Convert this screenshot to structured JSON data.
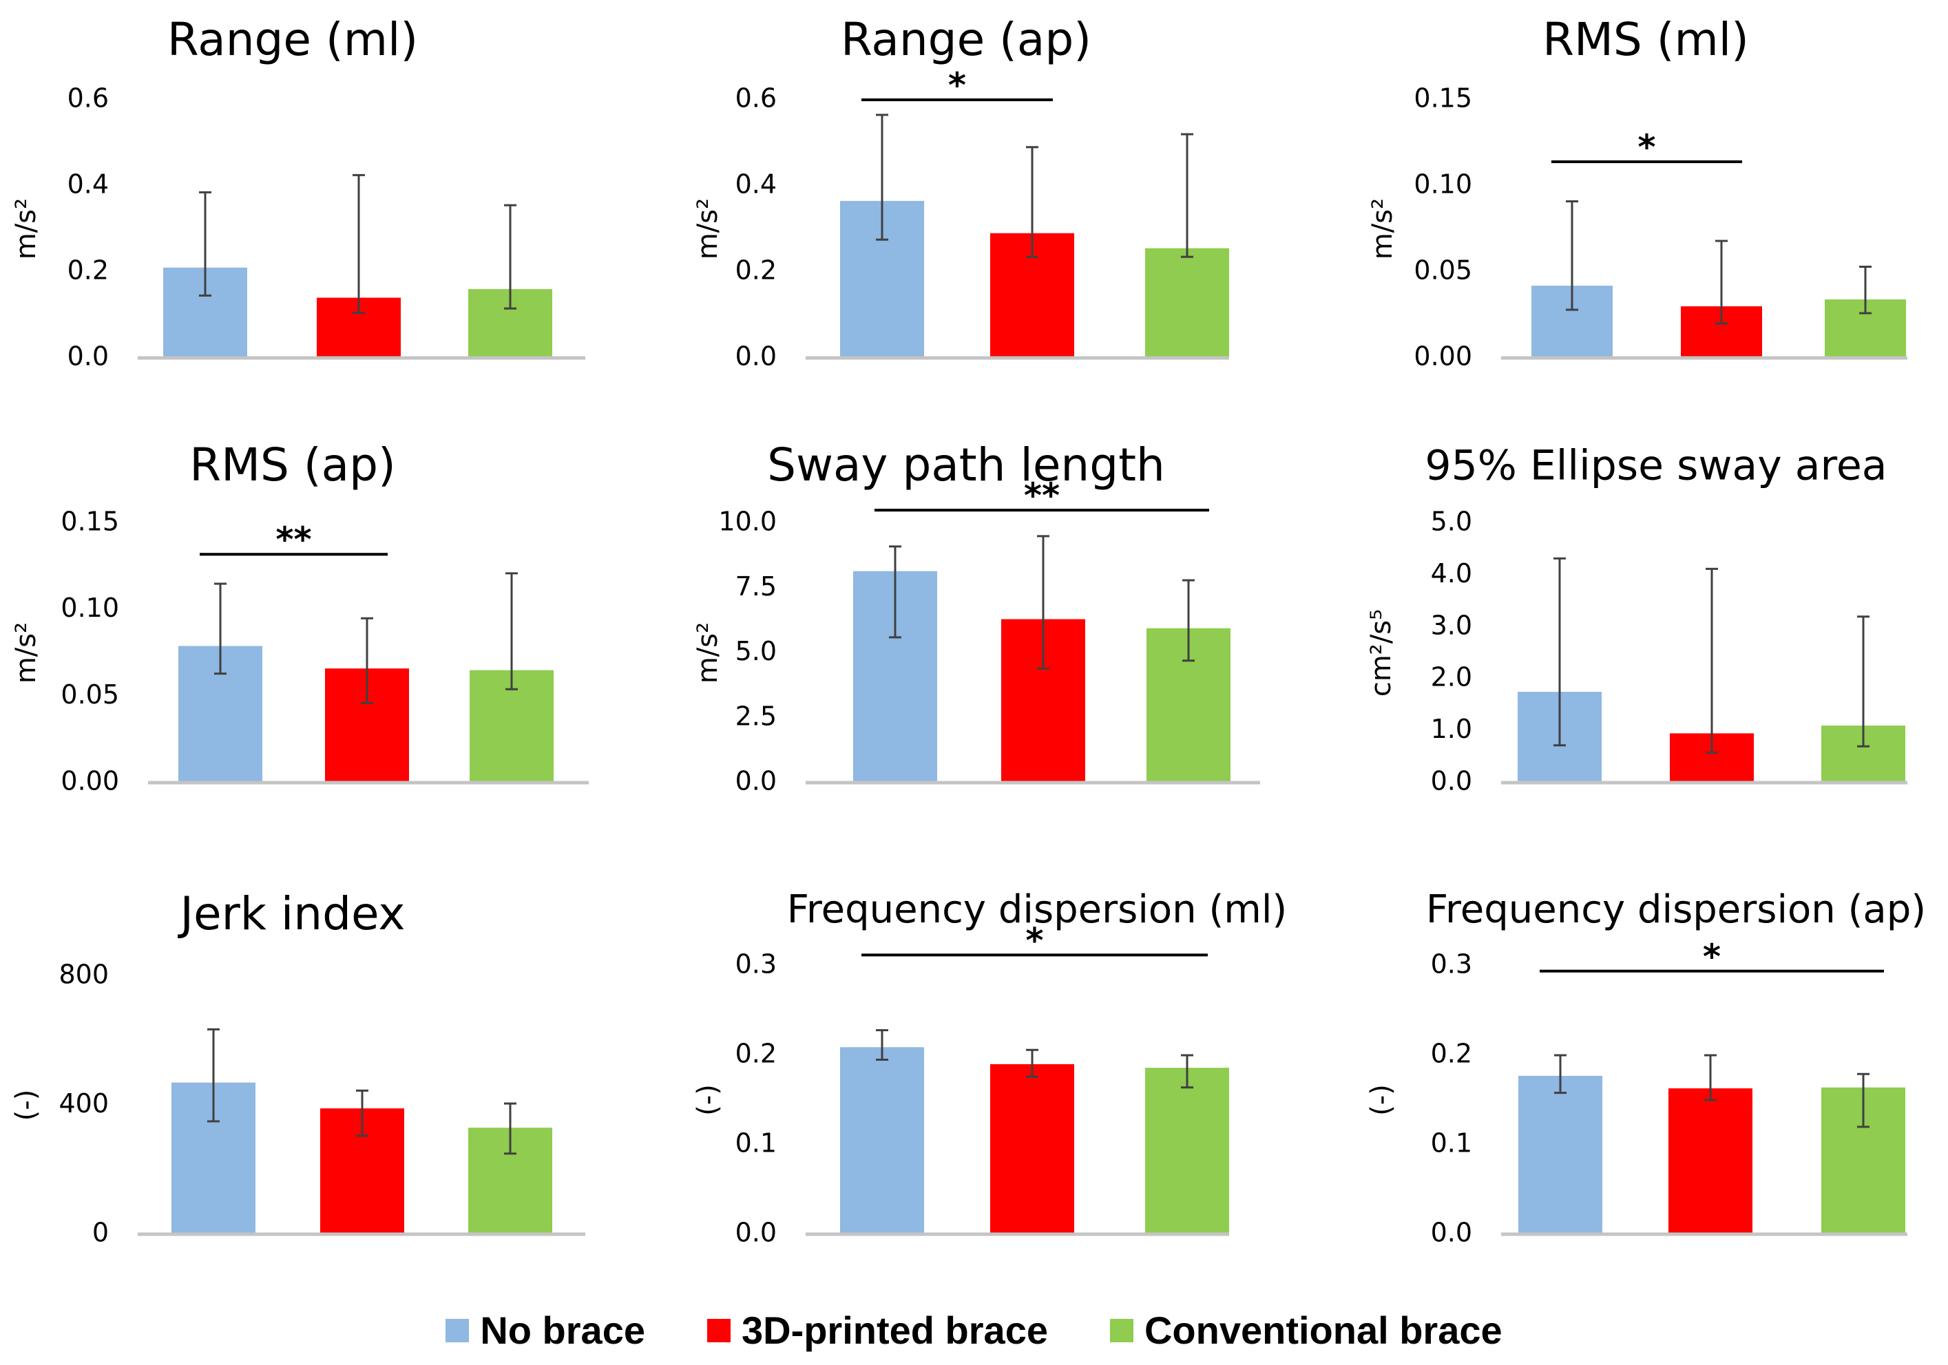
{
  "colors": {
    "no_brace": "#8fb8e2",
    "printed_brace": "#ff0000",
    "conventional_brace": "#8fcc4f",
    "axis": "#c4c4c4",
    "error_bar": "#404040",
    "sig_line": "#000000"
  },
  "legend": {
    "items": [
      {
        "label": "No brace",
        "color": "#8fb8e2"
      },
      {
        "label": "3D-printed brace",
        "color": "#ff0000"
      },
      {
        "label": "Conventional brace",
        "color": "#8fcc4f"
      }
    ]
  },
  "chart_data": [
    {
      "type": "bar",
      "title": "Range (ml)",
      "ylabel": "m/s²",
      "ylim": [
        0,
        0.6
      ],
      "yticks": [
        "0.0",
        "0.2",
        "0.4",
        "0.6"
      ],
      "categories": [
        "No brace",
        "3D-printed brace",
        "Conventional brace"
      ],
      "values": [
        0.21,
        0.14,
        0.16
      ],
      "err_low": [
        0.145,
        0.105,
        0.115
      ],
      "err_high": [
        0.385,
        0.425,
        0.355
      ],
      "significance": []
    },
    {
      "type": "bar",
      "title": "Range (ap)",
      "ylabel": "m/s²",
      "ylim": [
        0,
        0.6
      ],
      "yticks": [
        "0.0",
        "0.2",
        "0.4",
        "0.6"
      ],
      "categories": [
        "No brace",
        "3D-printed brace",
        "Conventional brace"
      ],
      "values": [
        0.365,
        0.29,
        0.255
      ],
      "err_low": [
        0.275,
        0.235,
        0.235
      ],
      "err_high": [
        0.565,
        0.49,
        0.52
      ],
      "significance": [
        {
          "from": 0,
          "to": 1,
          "label": "*",
          "level": 0.6
        }
      ]
    },
    {
      "type": "bar",
      "title": "RMS (ml)",
      "ylabel": "m/s²",
      "ylim": [
        0,
        0.15
      ],
      "yticks": [
        "0.00",
        "0.05",
        "0.10",
        "0.15"
      ],
      "categories": [
        "No brace",
        "3D-printed brace",
        "Conventional brace"
      ],
      "values": [
        0.042,
        0.03,
        0.034
      ],
      "err_low": [
        0.028,
        0.02,
        0.026
      ],
      "err_high": [
        0.091,
        0.068,
        0.053
      ],
      "significance": [
        {
          "from": 0,
          "to": 1,
          "label": "*",
          "level": 0.114
        }
      ]
    },
    {
      "type": "bar",
      "title": "RMS (ap)",
      "ylabel": "m/s²",
      "ylim": [
        0,
        0.15
      ],
      "yticks": [
        "0.00",
        "0.05",
        "0.10",
        "0.15"
      ],
      "categories": [
        "No brace",
        "3D-printed brace",
        "Conventional brace"
      ],
      "values": [
        0.079,
        0.066,
        0.065
      ],
      "err_low": [
        0.063,
        0.046,
        0.054
      ],
      "err_high": [
        0.115,
        0.095,
        0.121
      ],
      "significance": [
        {
          "from": 0,
          "to": 1,
          "label": "**",
          "level": 0.132
        }
      ]
    },
    {
      "type": "bar",
      "title": "Sway path length",
      "ylabel": "m/s²",
      "ylim": [
        0,
        10
      ],
      "yticks": [
        "0.0",
        "2.5",
        "5.0",
        "7.5",
        "10.0"
      ],
      "categories": [
        "No brace",
        "3D-printed brace",
        "Conventional brace"
      ],
      "values": [
        8.15,
        6.3,
        5.95
      ],
      "err_low": [
        5.6,
        4.4,
        4.7
      ],
      "err_high": [
        9.1,
        9.5,
        7.8
      ],
      "significance": [
        {
          "from": 0,
          "to": 2,
          "label": "**",
          "level": 10.5
        }
      ]
    },
    {
      "type": "bar",
      "title": "95% Ellipse sway area",
      "ylabel": "cm²/s⁵",
      "ylim": [
        0,
        5
      ],
      "yticks": [
        "0.0",
        "1.0",
        "2.0",
        "3.0",
        "4.0",
        "5.0"
      ],
      "categories": [
        "No brace",
        "3D-printed brace",
        "Conventional brace"
      ],
      "values": [
        1.75,
        0.95,
        1.1
      ],
      "err_low": [
        0.72,
        0.58,
        0.7
      ],
      "err_high": [
        4.32,
        4.12,
        3.2
      ],
      "significance": []
    },
    {
      "type": "bar",
      "title": "Jerk index",
      "ylabel": "(-)",
      "ylim": [
        0,
        800
      ],
      "yticks": [
        "0",
        "400",
        "800"
      ],
      "categories": [
        "No brace",
        "3D-printed brace",
        "Conventional brace"
      ],
      "values": [
        470,
        390,
        330
      ],
      "err_low": [
        350,
        305,
        250
      ],
      "err_high": [
        635,
        445,
        405
      ],
      "significance": []
    },
    {
      "type": "bar",
      "title": "Frequency dispersion (ml)",
      "ylabel": "(-)",
      "ylim": [
        0,
        0.3
      ],
      "yticks": [
        "0.0",
        "0.1",
        "0.2",
        "0.3"
      ],
      "categories": [
        "No brace",
        "3D-printed brace",
        "Conventional brace"
      ],
      "values": [
        0.209,
        0.19,
        0.186
      ],
      "err_low": [
        0.195,
        0.176,
        0.164
      ],
      "err_high": [
        0.228,
        0.206,
        0.2
      ],
      "significance": [
        {
          "from": 0,
          "to": 2,
          "label": "*",
          "level": 0.312
        }
      ]
    },
    {
      "type": "bar",
      "title": "Frequency dispersion (ap)",
      "ylabel": "(-)",
      "ylim": [
        0,
        0.3
      ],
      "yticks": [
        "0.0",
        "0.1",
        "0.2",
        "0.3"
      ],
      "categories": [
        "No brace",
        "3D-printed brace",
        "Conventional brace"
      ],
      "values": [
        0.177,
        0.163,
        0.164
      ],
      "err_low": [
        0.158,
        0.15,
        0.12
      ],
      "err_high": [
        0.2,
        0.2,
        0.179
      ],
      "significance": [
        {
          "from": 0,
          "to": 2,
          "label": "*",
          "level": 0.294
        }
      ]
    }
  ]
}
